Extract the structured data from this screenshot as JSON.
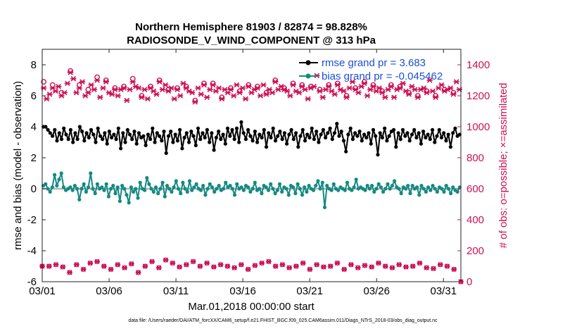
{
  "chart_data": {
    "type": "line",
    "title_line1": "Northern Hemisphere 81903 / 82874 = 98.828%",
    "title_line2": "RADIOSONDE_V_WIND_COMPONENT @ 313 hPa",
    "xlabel": "Mar.01,2018 00:00:00 start",
    "ylabel_left": "rmse and bias (model - observation)",
    "ylabel_right": "# of obs: o=possible; ×=assimilated",
    "footnote": "data file: /Users/raeder/DAI/ATM_forcXX/CAM6_setup/f.e21.FHIST_BGC.f09_025.CAM6assim.011/Diags_NTrS_2018-03/obs_diag_output.nc",
    "xlim": [
      0,
      31.3
    ],
    "x_ticks": [
      0,
      5,
      10,
      15,
      20,
      25,
      30
    ],
    "x_tick_labels": [
      "03/01",
      "03/06",
      "03/11",
      "03/16",
      "03/21",
      "03/26",
      "03/31"
    ],
    "ylim_left": [
      -6,
      9
    ],
    "y_ticks_left": [
      -6,
      -4,
      -2,
      0,
      2,
      4,
      6,
      8
    ],
    "y_tick_labels_left": [
      "-6",
      "-4",
      "-2",
      "0",
      "2",
      "4",
      "6",
      "8"
    ],
    "ylim_right": [
      0,
      1500
    ],
    "y_ticks_right": [
      0,
      200,
      400,
      600,
      800,
      1000,
      1200,
      1400
    ],
    "y_tick_labels_right": [
      "0",
      "200",
      "400",
      "600",
      "800",
      "1000",
      "1200",
      "1400"
    ],
    "legend": [
      {
        "label": "rmse grand pr = 3.683",
        "color": "#000000"
      },
      {
        "label": "bias grand pr = -0.045462",
        "color": "#138a82"
      }
    ],
    "series": [
      {
        "name": "rmse",
        "axis": "left",
        "color": "#000000",
        "values": [
          4.0,
          4.0,
          3.8,
          3.6,
          3.4,
          3.8,
          3.1,
          3.6,
          3.2,
          3.9,
          3.5,
          3.2,
          3.8,
          3.0,
          3.6,
          3.2,
          4.0,
          3.7,
          3.1,
          3.6,
          3.3,
          3.8,
          3.5,
          3.0,
          3.9,
          3.4,
          3.2,
          3.6,
          2.9,
          3.7,
          3.3,
          3.5,
          3.2,
          3.9,
          2.6,
          3.6,
          3.0,
          3.8,
          3.5,
          3.2,
          3.7,
          2.9,
          3.6,
          3.3,
          3.4,
          2.8,
          3.5,
          3.2,
          3.9,
          3.0,
          3.6,
          3.4,
          3.1,
          3.7,
          2.3,
          3.4,
          3.7,
          3.0,
          3.5,
          3.1,
          3.8,
          2.6,
          3.3,
          3.6,
          3.0,
          3.7,
          3.4,
          2.8,
          3.9,
          3.2,
          3.6,
          3.3,
          3.8,
          3.0,
          3.6,
          2.5,
          3.3,
          3.7,
          3.2,
          3.5,
          2.9,
          3.9,
          3.4,
          3.8,
          3.2,
          3.9,
          3.0,
          4.3,
          3.6,
          3.2,
          3.8,
          3.4,
          3.1,
          3.7,
          3.0,
          3.5,
          3.3,
          3.8,
          2.7,
          3.6,
          3.3,
          3.9,
          3.1,
          3.4,
          3.7,
          3.2,
          3.6,
          2.9,
          3.5,
          3.8,
          3.2,
          3.6,
          2.7,
          3.4,
          3.8,
          3.1,
          3.5,
          3.3,
          3.9,
          3.2,
          3.7,
          3.0,
          3.5,
          3.8,
          3.3,
          3.6,
          3.9,
          3.2,
          3.6,
          4.2,
          3.4,
          3.7,
          3.1,
          2.4,
          3.5,
          3.9,
          3.2,
          3.6,
          3.4,
          3.7,
          3.1,
          3.5,
          3.3,
          3.6,
          2.9,
          3.8,
          3.4,
          2.2,
          3.6,
          3.3,
          3.9,
          3.1,
          3.4,
          3.7,
          3.8,
          2.7,
          3.6,
          3.2,
          3.8,
          3.4,
          3.6,
          3.1,
          3.5,
          3.8,
          3.3,
          3.6,
          2.9,
          3.7,
          3.3,
          3.5,
          3.2,
          3.8,
          3.0,
          3.4,
          3.8,
          3.3,
          3.6,
          3.1,
          3.5,
          2.7,
          3.6,
          3.9,
          3.4,
          3.5
        ]
      },
      {
        "name": "bias",
        "axis": "left",
        "color": "#138a82",
        "values": [
          0.2,
          0.3,
          0.0,
          -0.2,
          0.1,
          0.9,
          0.2,
          0.6,
          1.0,
          0.1,
          -0.1,
          0.0,
          0.1,
          -0.1,
          0.2,
          0.0,
          -0.7,
          0.0,
          0.3,
          -0.2,
          0.1,
          1.0,
          0.0,
          -0.3,
          0.3,
          0.0,
          0.1,
          -0.1,
          0.3,
          -0.5,
          0.0,
          0.2,
          -0.3,
          0.1,
          -0.8,
          0.2,
          0.0,
          -0.4,
          -0.9,
          0.1,
          -0.2,
          0.0,
          -0.6,
          0.4,
          0.0,
          -0.1,
          0.7,
          0.3,
          0.0,
          -0.2,
          0.1,
          -0.3,
          0.0,
          0.4,
          -0.5,
          0.2,
          0.0,
          -0.2,
          0.1,
          0.5,
          0.0,
          -0.3,
          0.4,
          0.0,
          -0.2,
          0.5,
          -0.1,
          0.1,
          0.3,
          0.0,
          -0.1,
          0.2,
          -0.4,
          0.0,
          0.3,
          0.1,
          -0.2,
          0.0,
          0.2,
          -0.1,
          0.0,
          0.4,
          0.1,
          0.2,
          0.0,
          -0.4,
          0.3,
          0.0,
          0.1,
          -0.1,
          0.2,
          0.1,
          -0.2,
          0.0,
          0.4,
          -0.1,
          0.0,
          -0.3,
          0.2,
          0.1,
          -0.1,
          0.3,
          0.0,
          -0.3,
          -0.1,
          0.3,
          -0.2,
          0.1,
          0.0,
          -0.4,
          0.2,
          0.1,
          -0.3,
          0.3,
          0.0,
          -0.4,
          0.1,
          -0.2,
          0.2,
          0.0,
          -0.1,
          0.2,
          0.5,
          0.0,
          0.4,
          -1.2,
          0.2,
          0.0,
          -0.1,
          0.3,
          0.0,
          -0.1,
          0.1,
          0.0,
          -0.1,
          0.4,
          0.0,
          -0.1,
          0.1,
          0.6,
          0.0,
          0.1,
          0.0,
          -0.1,
          0.2,
          0.0,
          0.2,
          -0.2,
          0.0,
          0.3,
          0.1,
          -0.2,
          0.0,
          0.3,
          0.0,
          0.2,
          0.5,
          0.1,
          0.0,
          -0.3,
          0.1,
          0.0,
          0.2,
          -0.3,
          0.2,
          0.0,
          0.1,
          -0.4,
          0.2,
          0.0,
          -0.2,
          0.1,
          -0.1,
          0.2,
          0.0,
          -0.2,
          0.1,
          0.0,
          -0.2,
          0.2,
          0.0,
          -0.3,
          0.1,
          -0.1,
          -0.2,
          0.1
        ]
      },
      {
        "name": "obs_possible",
        "axis": "right",
        "color": "#cc1155",
        "marker": "o",
        "values": [
          1290,
          1190,
          1230,
          1270,
          1250,
          1280,
          1220,
          1230,
          1300,
          1360,
          1320,
          1240,
          1270,
          1300,
          1210,
          1240,
          1280,
          1250,
          1320,
          1200,
          1270,
          1300,
          1230,
          1220,
          1250,
          1210,
          1260,
          1260,
          1180,
          1250,
          1310,
          1280,
          1260,
          1200,
          1250,
          1190,
          1260,
          1240,
          1220,
          1300,
          1250,
          1280,
          1240,
          1270,
          1190,
          1250,
          1210,
          1290,
          1260,
          1240,
          1230,
          1170,
          1260,
          1220,
          1280,
          1200,
          1250,
          1280,
          1240,
          1260,
          1190,
          1250,
          1230,
          1250,
          1210,
          1280,
          1230,
          1260,
          1190,
          1270,
          1230,
          1250,
          1260,
          1210,
          1280,
          1220,
          1250,
          1230,
          1300,
          1250,
          1270,
          1250,
          1240,
          1210,
          1280,
          1240,
          1230,
          1270,
          1250,
          1190,
          1260,
          1270,
          1340,
          1240,
          1200,
          1250,
          1270,
          1240,
          1220,
          1280,
          1250,
          1240,
          1200,
          1260,
          1300,
          1250,
          1230,
          1270,
          1290,
          1210,
          1250,
          1270,
          1240,
          1260,
          1230,
          1200,
          1250,
          1270,
          1200,
          1250,
          1260,
          1290,
          1240,
          1220,
          1270,
          1250,
          1200,
          1250,
          1260,
          1230,
          1310,
          1240,
          1200,
          1260,
          1280,
          1240,
          1250,
          1260,
          1220,
          1300,
          1250
        ]
      },
      {
        "name": "obs_assimilated",
        "axis": "right",
        "color": "#cc1155",
        "marker": "x",
        "values": [
          1250,
          1180,
          1210,
          1250,
          1230,
          1260,
          1200,
          1220,
          1280,
          1350,
          1310,
          1220,
          1250,
          1290,
          1200,
          1220,
          1270,
          1240,
          1300,
          1190,
          1250,
          1290,
          1220,
          1210,
          1240,
          1200,
          1240,
          1250,
          1170,
          1240,
          1290,
          1260,
          1250,
          1190,
          1240,
          1180,
          1250,
          1230,
          1210,
          1290,
          1240,
          1270,
          1230,
          1250,
          1180,
          1240,
          1200,
          1280,
          1250,
          1230,
          1220,
          1160,
          1250,
          1210,
          1270,
          1190,
          1240,
          1270,
          1230,
          1250,
          1180,
          1240,
          1220,
          1240,
          1200,
          1270,
          1220,
          1250,
          1180,
          1260,
          1220,
          1240,
          1250,
          1200,
          1270,
          1210,
          1240,
          1220,
          1290,
          1240,
          1260,
          1240,
          1230,
          1200,
          1270,
          1230,
          1220,
          1260,
          1240,
          1180,
          1250,
          1260,
          1330,
          1230,
          1190,
          1240,
          1260,
          1230,
          1210,
          1270,
          1240,
          1230,
          1190,
          1250,
          1290,
          1240,
          1220,
          1260,
          1280,
          1200,
          1240,
          1260,
          1230,
          1250,
          1220,
          1190,
          1240,
          1260,
          1190,
          1240,
          1250,
          1280,
          1230,
          1210,
          1260,
          1240,
          1190,
          1240,
          1250,
          1220,
          1300,
          1230,
          1190,
          1250,
          1270,
          1230,
          1240,
          1250,
          1210,
          1290,
          1240
        ]
      },
      {
        "name": "obs_low",
        "axis": "right",
        "color": "#cc1155",
        "marker": "ox",
        "values": [
          100,
          100,
          110,
          95,
          60,
          110,
          80,
          120,
          130,
          100,
          80,
          110,
          90,
          115,
          60,
          100,
          130,
          90,
          140,
          120,
          95,
          110,
          130,
          100,
          120,
          95,
          110,
          100,
          90,
          110,
          80,
          105,
          120,
          130,
          100,
          110,
          90,
          100,
          120,
          80,
          110,
          95,
          100,
          120,
          80,
          110,
          90,
          105,
          95,
          120,
          100,
          90,
          110,
          95,
          100,
          120,
          90,
          85,
          110,
          100,
          80,
          0
        ]
      }
    ]
  }
}
